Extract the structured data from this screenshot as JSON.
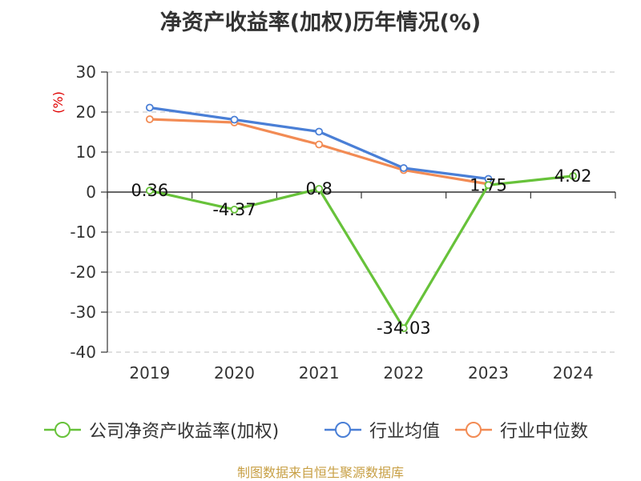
{
  "chart_data": {
    "type": "line",
    "title": "净资产收益率(加权)历年情况(%)",
    "ylabel": "(%)",
    "xlabel": "",
    "categories": [
      "2019",
      "2020",
      "2021",
      "2022",
      "2023",
      "2024"
    ],
    "ylim": [
      -40,
      30
    ],
    "yticks": [
      30,
      20,
      10,
      0,
      -10,
      -20,
      -30,
      -40
    ],
    "grid": true,
    "legend_position": "bottom",
    "series": [
      {
        "name": "公司净资产收益率(加权)",
        "color": "#67c23a",
        "values": [
          0.36,
          -4.37,
          0.8,
          -34.03,
          1.75,
          4.02
        ],
        "data_labels": [
          "0.36",
          "-4.37",
          "0.8",
          "-34.03",
          "1.75",
          "4.02"
        ]
      },
      {
        "name": "行业均值",
        "color": "#4a7fd6",
        "values": [
          21.1,
          18.1,
          15.1,
          6.0,
          3.3,
          null
        ]
      },
      {
        "name": "行业中位数",
        "color": "#f28b54",
        "values": [
          18.2,
          17.4,
          11.9,
          5.5,
          2.0,
          null
        ]
      }
    ]
  },
  "footer": {
    "source": "制图数据来自恒生聚源数据库",
    "source_color": "#c8a046"
  }
}
